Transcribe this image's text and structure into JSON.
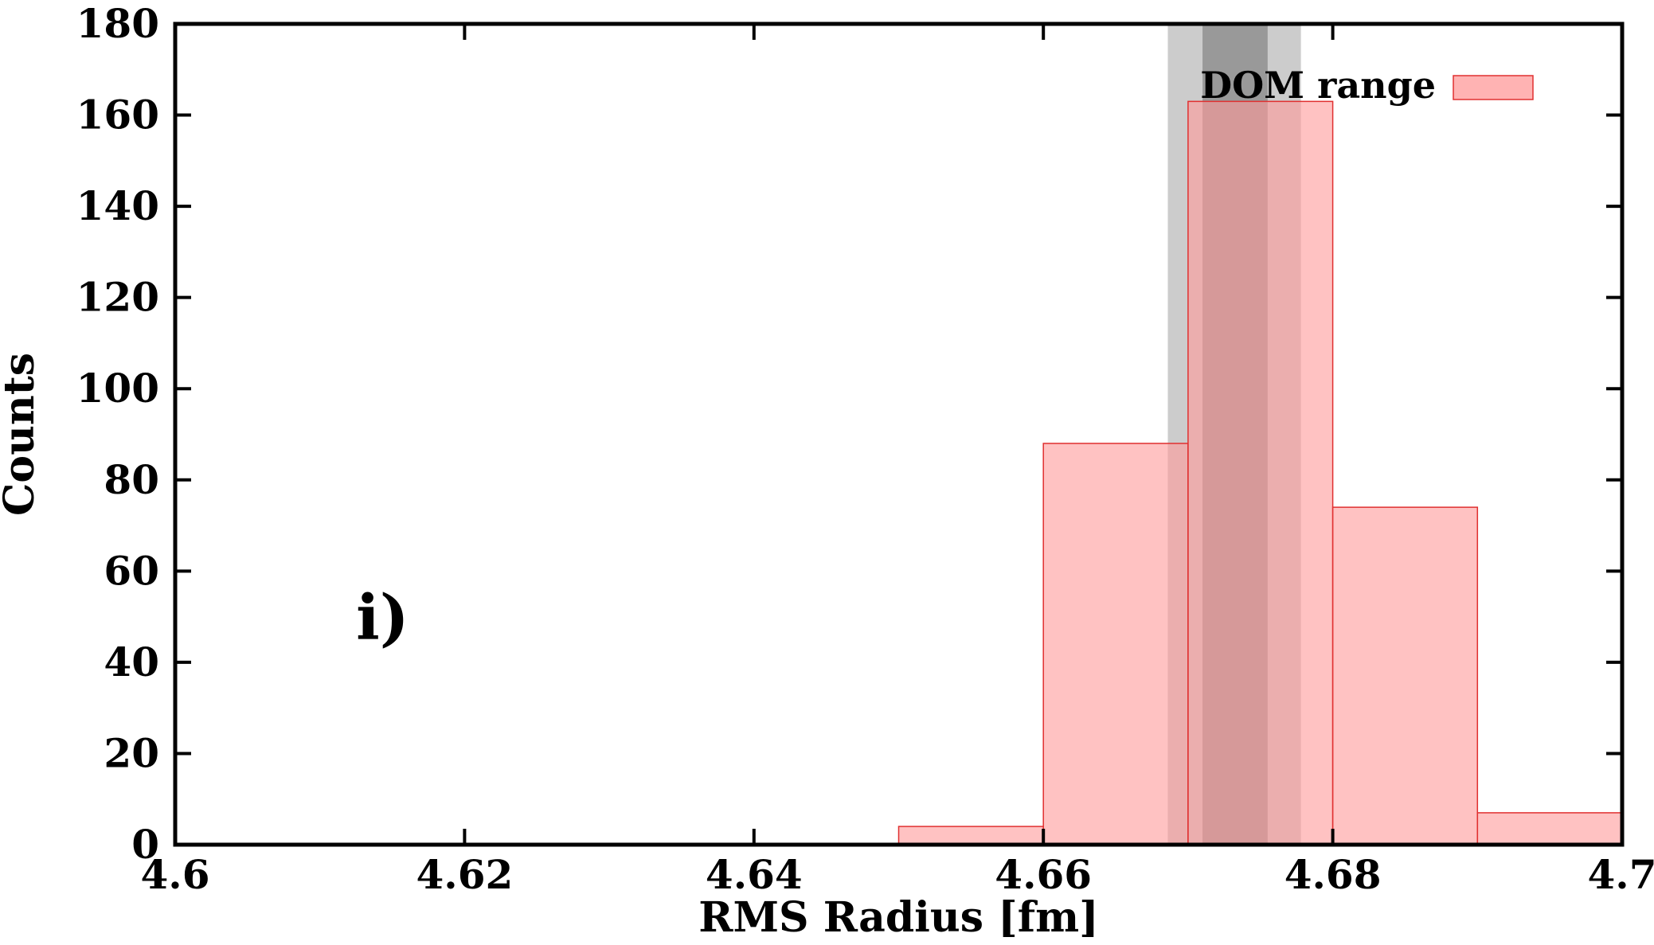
{
  "chart_data": {
    "type": "bar",
    "title": "",
    "xlabel": "RMS Radius [fm]",
    "ylabel": "Counts",
    "xlim": [
      4.6,
      4.7
    ],
    "ylim": [
      0,
      180
    ],
    "xticks": [
      4.6,
      4.62,
      4.64,
      4.66,
      4.68,
      4.7
    ],
    "xtick_labels": [
      "4.6",
      "4.62",
      "4.64",
      "4.66",
      "4.68",
      "4.7"
    ],
    "yticks": [
      0,
      20,
      40,
      60,
      80,
      100,
      120,
      140,
      160,
      180
    ],
    "ytick_labels": [
      "0",
      "20",
      "40",
      "60",
      "80",
      "100",
      "120",
      "140",
      "160",
      "180"
    ],
    "grid": false,
    "legend": {
      "placement": "top-right",
      "entries": [
        "DOM range"
      ]
    },
    "series": [
      {
        "name": "DOM range",
        "color": "#ff9999",
        "bins": [
          {
            "x0": 4.65,
            "x1": 4.66,
            "count": 4
          },
          {
            "x0": 4.66,
            "x1": 4.67,
            "count": 88
          },
          {
            "x0": 4.67,
            "x1": 4.68,
            "count": 163
          },
          {
            "x0": 4.68,
            "x1": 4.69,
            "count": 74
          },
          {
            "x0": 4.69,
            "x1": 4.7,
            "count": 7
          }
        ]
      }
    ],
    "bands": [
      {
        "x0": 4.6686,
        "x1": 4.6778,
        "color": "#bbbbbb",
        "opacity": 0.75
      },
      {
        "x0": 4.671,
        "x1": 4.6755,
        "color": "#888888",
        "opacity": 0.75
      }
    ],
    "annotations": [
      {
        "text": "i)",
        "x": 4.6125,
        "y": 50
      }
    ]
  }
}
